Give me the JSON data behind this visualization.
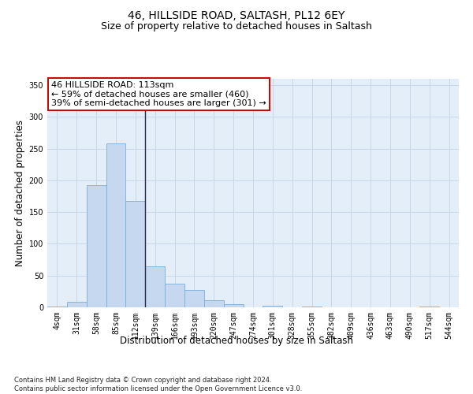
{
  "title1": "46, HILLSIDE ROAD, SALTASH, PL12 6EY",
  "title2": "Size of property relative to detached houses in Saltash",
  "xlabel": "Distribution of detached houses by size in Saltash",
  "ylabel": "Number of detached properties",
  "footnote": "Contains HM Land Registry data © Crown copyright and database right 2024.\nContains public sector information licensed under the Open Government Licence v3.0.",
  "bar_labels": [
    "4sqm",
    "31sqm",
    "58sqm",
    "85sqm",
    "112sqm",
    "139sqm",
    "166sqm",
    "193sqm",
    "220sqm",
    "247sqm",
    "274sqm",
    "301sqm",
    "328sqm",
    "355sqm",
    "382sqm",
    "409sqm",
    "436sqm",
    "463sqm",
    "490sqm",
    "517sqm",
    "544sqm"
  ],
  "bar_values": [
    1,
    9,
    192,
    258,
    168,
    65,
    37,
    27,
    11,
    5,
    0,
    3,
    0,
    1,
    0,
    0,
    0,
    0,
    0,
    1,
    0
  ],
  "bar_color": "#c5d8f0",
  "bar_edge_color": "#7aadd4",
  "vline_color": "#2a2a4a",
  "annotation_text": "46 HILLSIDE ROAD: 113sqm\n← 59% of detached houses are smaller (460)\n39% of semi-detached houses are larger (301) →",
  "annotation_box_color": "#ffffff",
  "annotation_border_color": "#cc0000",
  "ylim": [
    0,
    360
  ],
  "yticks": [
    0,
    50,
    100,
    150,
    200,
    250,
    300,
    350
  ],
  "grid_color": "#c8d8e8",
  "background_color": "#e4eef8",
  "title_fontsize": 10,
  "subtitle_fontsize": 9,
  "axis_label_fontsize": 8.5,
  "tick_fontsize": 7,
  "annotation_fontsize": 8,
  "footnote_fontsize": 6
}
